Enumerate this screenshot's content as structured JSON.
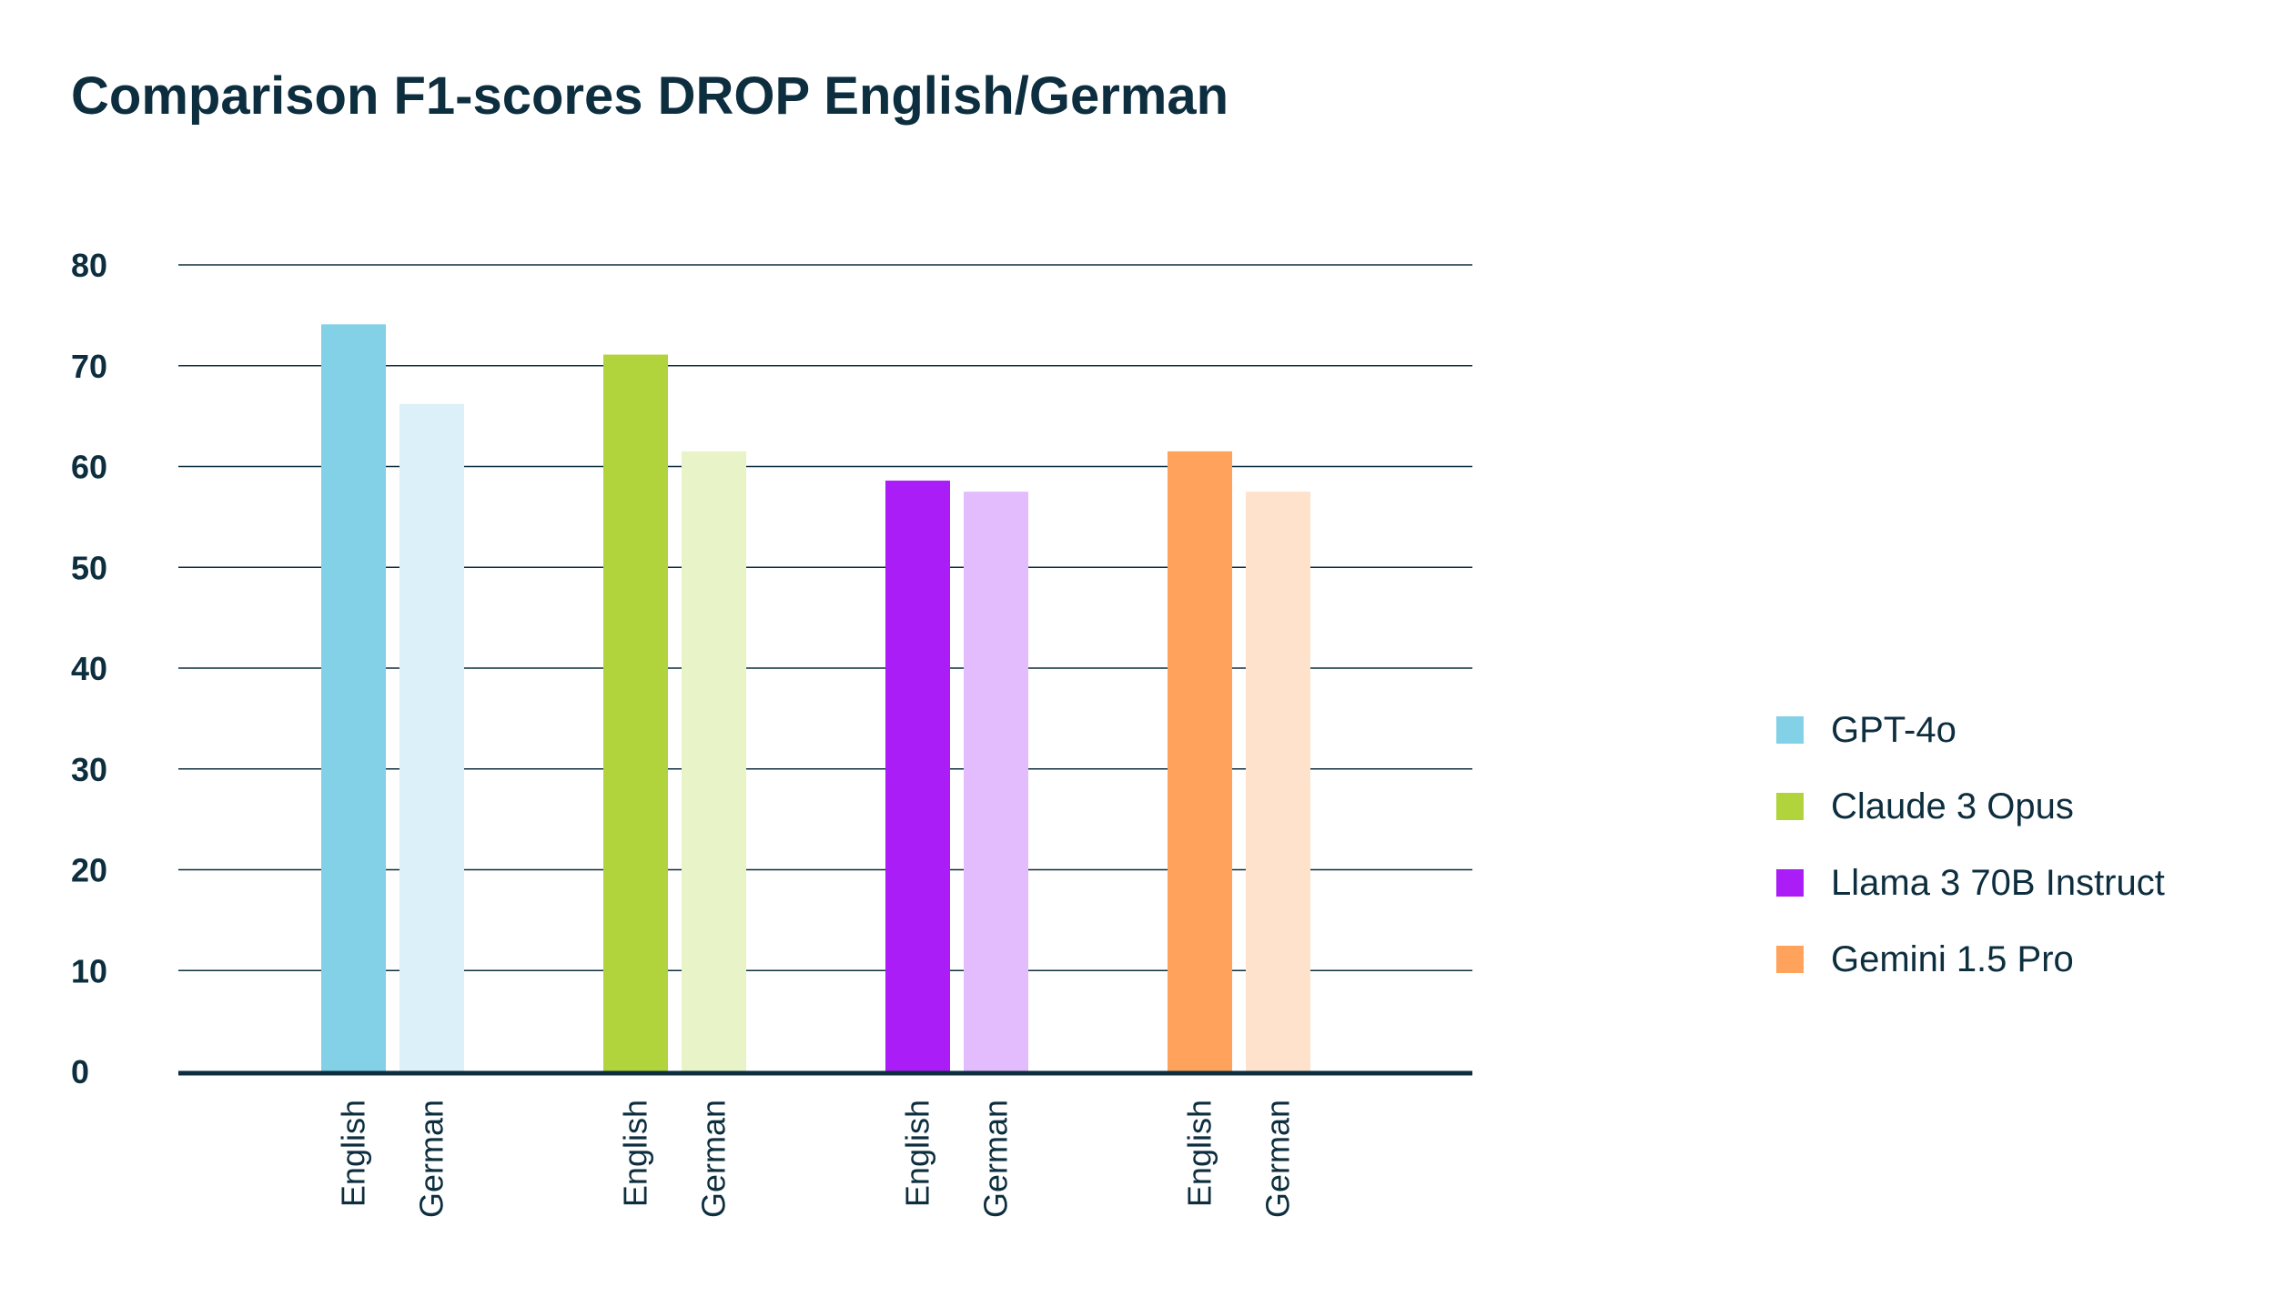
{
  "chart_data": {
    "type": "bar",
    "title": "Comparison F1-scores DROP English/German",
    "xlabel": "",
    "ylabel": "",
    "ylim": [
      0,
      80
    ],
    "yticks": [
      0,
      10,
      20,
      30,
      40,
      50,
      60,
      70,
      80
    ],
    "grid": true,
    "legend_position": "right",
    "groups": [
      {
        "name": "GPT-4o",
        "color": "#82d1e6",
        "bars": [
          {
            "label": "English",
            "value": 74.1,
            "color": "#82d1e6"
          },
          {
            "label": "German",
            "value": 66.2,
            "color": "#dbf0f8"
          }
        ]
      },
      {
        "name": "Claude 3 Opus",
        "color": "#b1d33b",
        "bars": [
          {
            "label": "English",
            "value": 71.1,
            "color": "#b1d33b"
          },
          {
            "label": "German",
            "value": 61.5,
            "color": "#e8f3c7"
          }
        ]
      },
      {
        "name": "Llama 3 70B Instruct",
        "color": "#aa1df7",
        "bars": [
          {
            "label": "English",
            "value": 58.6,
            "color": "#aa1df7"
          },
          {
            "label": "German",
            "value": 57.5,
            "color": "#e3bcfd"
          }
        ]
      },
      {
        "name": "Gemini 1.5 Pro",
        "color": "#ffa25c",
        "bars": [
          {
            "label": "English",
            "value": 61.5,
            "color": "#ffa25c"
          },
          {
            "label": "German",
            "value": 57.5,
            "color": "#ffe2cb"
          }
        ]
      }
    ]
  }
}
